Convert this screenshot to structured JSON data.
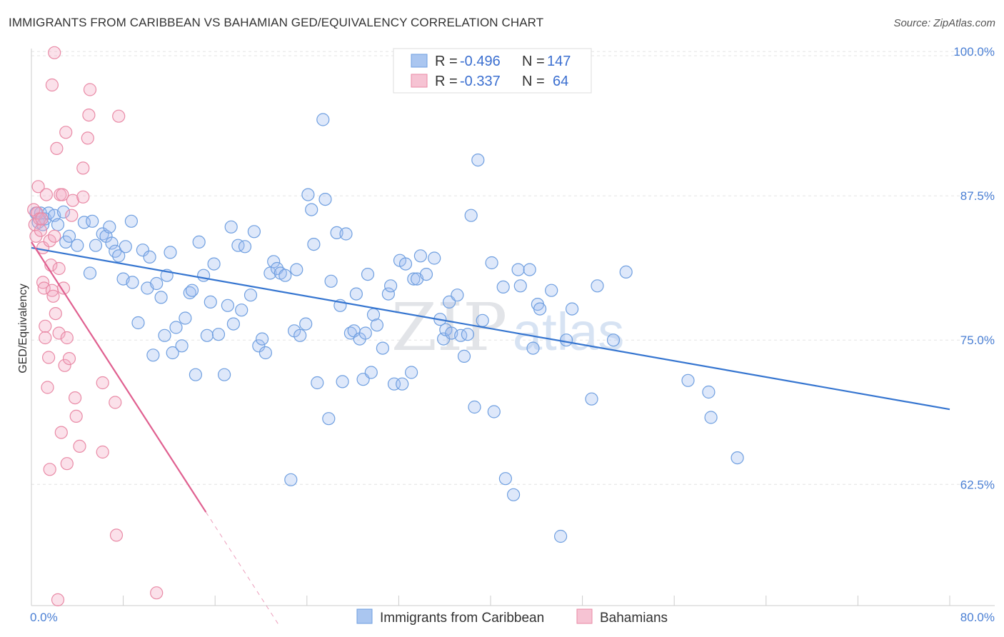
{
  "title": "IMMIGRANTS FROM CARIBBEAN VS BAHAMIAN GED/EQUIVALENCY CORRELATION CHART",
  "source": "Source: ZipAtlas.com",
  "watermark": {
    "part1": "ZIP",
    "part2": "atlas"
  },
  "chart_data": {
    "type": "scatter",
    "xlabel": "",
    "ylabel": "GED/Equivalency",
    "xlim": [
      0,
      80
    ],
    "ylim": [
      52,
      101
    ],
    "x_tick_labels": {
      "left": "0.0%",
      "right": "80.0%"
    },
    "y_ticks": [
      {
        "value": 100,
        "label": "100.0%"
      },
      {
        "value": 87.5,
        "label": "87.5%"
      },
      {
        "value": 75,
        "label": "75.0%"
      },
      {
        "value": 62.5,
        "label": "62.5%"
      }
    ],
    "grid": true,
    "legend": {
      "rows": [
        {
          "r_label": "R =",
          "r_value": "-0.496",
          "n_label": "N =",
          "n_value": "147"
        },
        {
          "r_label": "R =",
          "r_value": "-0.337",
          "n_label": "N =",
          "n_value": "64"
        }
      ]
    },
    "series": [
      {
        "name": "Immigrants from Caribbean",
        "color": "#6f9fe0",
        "fill": "rgba(160,190,240,0.35)",
        "line_color": "#3575d0",
        "trend": {
          "x": [
            0,
            80
          ],
          "y": [
            83,
            69
          ]
        },
        "points": [
          [
            0.4,
            86
          ],
          [
            0.6,
            85.2
          ],
          [
            0.8,
            86
          ],
          [
            1.0,
            85
          ],
          [
            1.2,
            85.5
          ],
          [
            1.5,
            86
          ],
          [
            2.0,
            85.8
          ],
          [
            2.3,
            85
          ],
          [
            2.8,
            86.1
          ],
          [
            3.0,
            83.5
          ],
          [
            3.3,
            84
          ],
          [
            4.0,
            83.2
          ],
          [
            4.6,
            85.2
          ],
          [
            5.1,
            80.8
          ],
          [
            5.3,
            85.3
          ],
          [
            5.6,
            83.2
          ],
          [
            6.2,
            84.2
          ],
          [
            6.5,
            84
          ],
          [
            6.8,
            84.8
          ],
          [
            7.0,
            83.4
          ],
          [
            7.3,
            82.7
          ],
          [
            7.6,
            82.3
          ],
          [
            8.0,
            80.3
          ],
          [
            8.2,
            83.1
          ],
          [
            8.7,
            85.3
          ],
          [
            8.8,
            80
          ],
          [
            9.3,
            76.5
          ],
          [
            9.7,
            82.8
          ],
          [
            10.1,
            79.5
          ],
          [
            10.3,
            82.2
          ],
          [
            10.6,
            73.7
          ],
          [
            10.9,
            79.9
          ],
          [
            11.3,
            78.7
          ],
          [
            11.6,
            75.4
          ],
          [
            11.8,
            80.6
          ],
          [
            12.1,
            82.6
          ],
          [
            12.3,
            73.9
          ],
          [
            12.6,
            76.1
          ],
          [
            13.1,
            74.5
          ],
          [
            13.4,
            76.9
          ],
          [
            13.8,
            79.1
          ],
          [
            14.0,
            79.3
          ],
          [
            14.3,
            72
          ],
          [
            14.6,
            83.5
          ],
          [
            15.0,
            80.6
          ],
          [
            15.3,
            75.4
          ],
          [
            15.6,
            78.3
          ],
          [
            15.9,
            81.6
          ],
          [
            16.3,
            75.5
          ],
          [
            16.8,
            72
          ],
          [
            17.1,
            78
          ],
          [
            17.4,
            84.8
          ],
          [
            17.6,
            76.4
          ],
          [
            18.0,
            83.2
          ],
          [
            18.3,
            77.6
          ],
          [
            18.6,
            83.1
          ],
          [
            19.1,
            78.9
          ],
          [
            19.4,
            84.4
          ],
          [
            19.8,
            74.5
          ],
          [
            20.1,
            75.1
          ],
          [
            20.4,
            73.9
          ],
          [
            20.8,
            80.8
          ],
          [
            21.1,
            81.8
          ],
          [
            21.4,
            81.2
          ],
          [
            21.7,
            80.8
          ],
          [
            22.1,
            80.6
          ],
          [
            22.6,
            62.9
          ],
          [
            22.9,
            75.8
          ],
          [
            23.1,
            81.1
          ],
          [
            23.4,
            75.4
          ],
          [
            23.9,
            76.4
          ],
          [
            24.1,
            87.6
          ],
          [
            24.4,
            86.3
          ],
          [
            24.6,
            83.3
          ],
          [
            24.9,
            71.3
          ],
          [
            25.4,
            94.1
          ],
          [
            25.6,
            87.2
          ],
          [
            25.9,
            68.2
          ],
          [
            26.1,
            80.1
          ],
          [
            26.6,
            84.3
          ],
          [
            26.9,
            78
          ],
          [
            27.1,
            71.4
          ],
          [
            27.4,
            84.2
          ],
          [
            27.8,
            75.6
          ],
          [
            28.1,
            75.8
          ],
          [
            28.3,
            79
          ],
          [
            28.6,
            75.1
          ],
          [
            28.9,
            71.6
          ],
          [
            29.1,
            75.6
          ],
          [
            29.3,
            80.7
          ],
          [
            29.6,
            72.2
          ],
          [
            29.8,
            77.2
          ],
          [
            30.1,
            76.3
          ],
          [
            30.6,
            74.3
          ],
          [
            31.1,
            79
          ],
          [
            31.3,
            79.7
          ],
          [
            31.6,
            71.2
          ],
          [
            32.1,
            81.9
          ],
          [
            32.3,
            71.2
          ],
          [
            32.6,
            81.6
          ],
          [
            33.1,
            72.2
          ],
          [
            33.3,
            80.3
          ],
          [
            33.6,
            80.3
          ],
          [
            33.9,
            82.3
          ],
          [
            34.4,
            80.7
          ],
          [
            35.1,
            82.1
          ],
          [
            35.6,
            76.8
          ],
          [
            35.9,
            75.1
          ],
          [
            36.1,
            75.9
          ],
          [
            36.4,
            78.3
          ],
          [
            36.6,
            75.6
          ],
          [
            37.1,
            78.9
          ],
          [
            37.4,
            75.4
          ],
          [
            37.7,
            73.6
          ],
          [
            38.0,
            75.5
          ],
          [
            38.3,
            85.8
          ],
          [
            38.6,
            69.2
          ],
          [
            38.9,
            90.6
          ],
          [
            39.3,
            76.7
          ],
          [
            40.1,
            81.7
          ],
          [
            40.3,
            68.8
          ],
          [
            41.1,
            79.6
          ],
          [
            41.3,
            63
          ],
          [
            42.0,
            61.6
          ],
          [
            42.4,
            81.1
          ],
          [
            42.6,
            79.7
          ],
          [
            43.4,
            81.1
          ],
          [
            43.7,
            74.3
          ],
          [
            44.1,
            78.1
          ],
          [
            44.3,
            77.7
          ],
          [
            45.3,
            79.3
          ],
          [
            46.1,
            58
          ],
          [
            46.6,
            75
          ],
          [
            47.1,
            77.7
          ],
          [
            48.8,
            69.9
          ],
          [
            49.3,
            79.7
          ],
          [
            50.7,
            75
          ],
          [
            51.8,
            80.9
          ],
          [
            57.2,
            71.5
          ],
          [
            59.0,
            70.5
          ],
          [
            59.2,
            68.3
          ],
          [
            61.5,
            64.8
          ]
        ]
      },
      {
        "name": "Bahamians",
        "color": "#e98aa6",
        "fill": "rgba(244,170,195,0.35)",
        "line_color": "#e06090",
        "trend": {
          "x": [
            0,
            15.2,
            21.5
          ],
          "y": [
            83.5,
            60.1,
            50.4
          ]
        },
        "points": [
          [
            0.2,
            86.3
          ],
          [
            0.3,
            85
          ],
          [
            0.4,
            84
          ],
          [
            0.5,
            86
          ],
          [
            0.6,
            88.3
          ],
          [
            0.7,
            85.5
          ],
          [
            0.8,
            84.5
          ],
          [
            0.9,
            85.5
          ],
          [
            1.0,
            83
          ],
          [
            1.0,
            80
          ],
          [
            1.1,
            79.5
          ],
          [
            1.2,
            76.2
          ],
          [
            1.2,
            75.2
          ],
          [
            1.3,
            87.6
          ],
          [
            1.4,
            70.9
          ],
          [
            1.5,
            73.5
          ],
          [
            1.6,
            63.8
          ],
          [
            1.6,
            83.6
          ],
          [
            1.7,
            81.5
          ],
          [
            1.8,
            79.3
          ],
          [
            1.8,
            97.1
          ],
          [
            1.9,
            78.8
          ],
          [
            2.0,
            99.9
          ],
          [
            2.0,
            84
          ],
          [
            2.1,
            77.3
          ],
          [
            2.2,
            91.6
          ],
          [
            2.3,
            52.5
          ],
          [
            2.4,
            75.6
          ],
          [
            2.4,
            81.2
          ],
          [
            2.5,
            87.6
          ],
          [
            2.6,
            67
          ],
          [
            2.7,
            87.6
          ],
          [
            2.8,
            79.5
          ],
          [
            2.9,
            72.8
          ],
          [
            3.0,
            93
          ],
          [
            3.1,
            64.3
          ],
          [
            3.1,
            75.2
          ],
          [
            3.3,
            73.4
          ],
          [
            3.5,
            85.8
          ],
          [
            3.6,
            87.1
          ],
          [
            3.8,
            70
          ],
          [
            3.9,
            68.4
          ],
          [
            4.2,
            65.8
          ],
          [
            4.5,
            87.4
          ],
          [
            4.5,
            89.9
          ],
          [
            4.9,
            92.5
          ],
          [
            5.0,
            94.5
          ],
          [
            5.1,
            96.7
          ],
          [
            6.2,
            71.3
          ],
          [
            6.2,
            65.3
          ],
          [
            7.3,
            69.6
          ],
          [
            7.4,
            58.1
          ],
          [
            7.6,
            94.4
          ],
          [
            10.9,
            53.1
          ]
        ]
      }
    ]
  }
}
